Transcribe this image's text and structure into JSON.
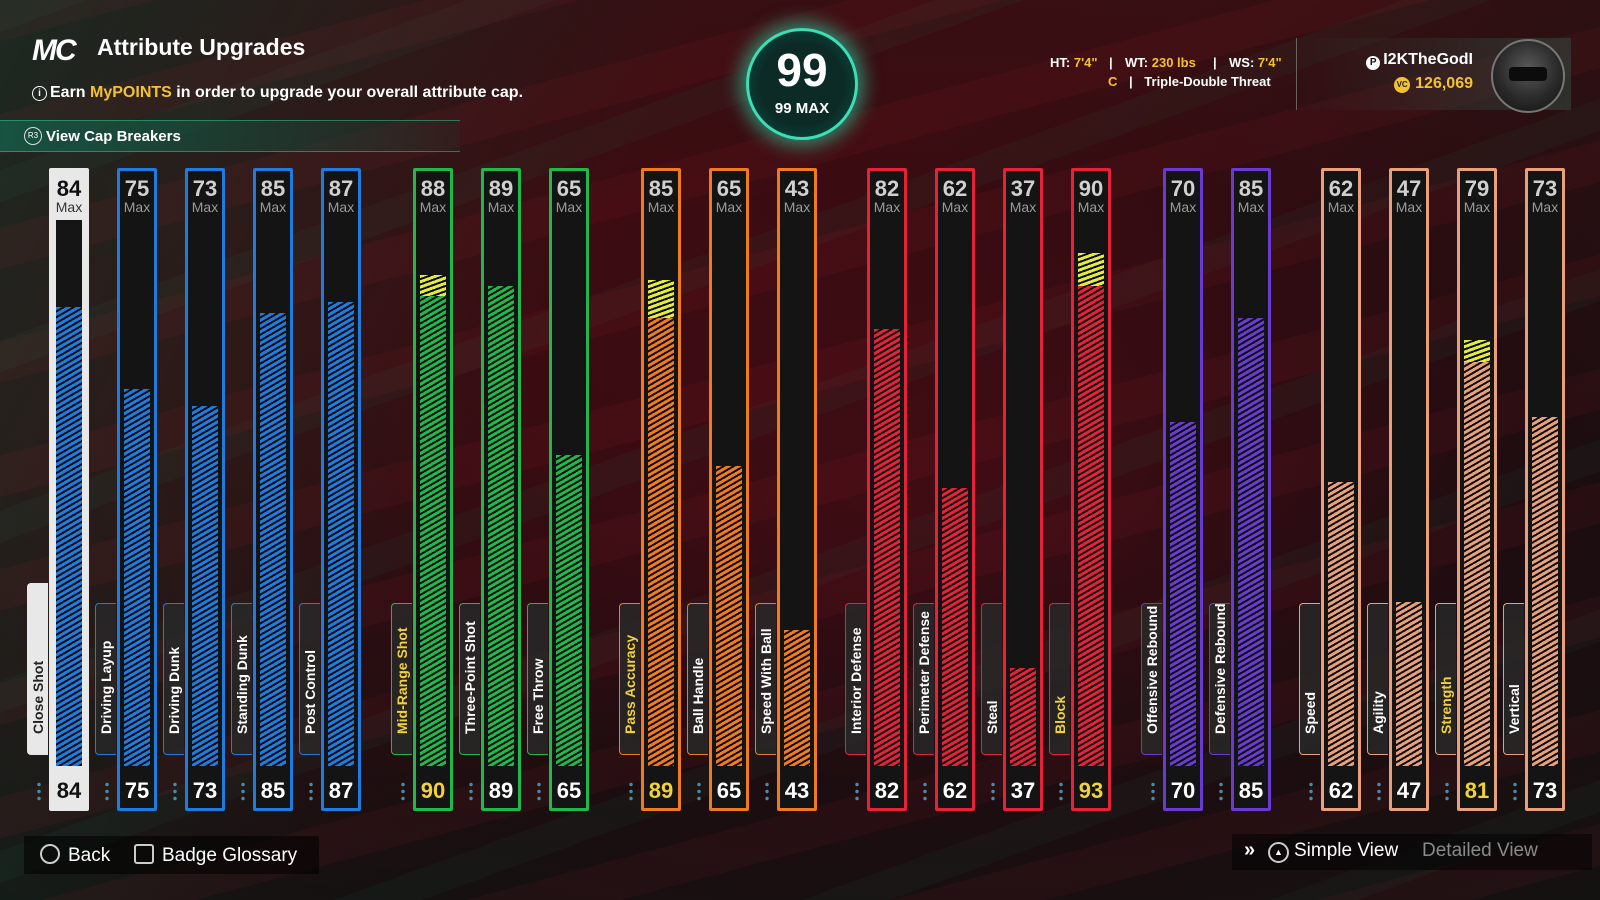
{
  "header": {
    "logo": "MC",
    "title": "Attribute Upgrades",
    "earn_prefix": "Earn",
    "earn_highlight": "MyPOINTS",
    "earn_suffix": "in order to upgrade your overall attribute cap.",
    "cap_button": "View Cap Breakers",
    "cap_button_icon": "R3"
  },
  "overall": {
    "value": "99",
    "max_label": "99 MAX"
  },
  "bio": {
    "ht_label": "HT:",
    "ht": "7'4\"",
    "wt_label": "WT:",
    "wt": "230 lbs",
    "ws_label": "WS:",
    "ws": "7'4\"",
    "position": "C",
    "archetype": "Triple-Double Threat"
  },
  "profile": {
    "username": "I2KTheGodI",
    "vc": "126,069",
    "vc_icon": "VC"
  },
  "max_label": "Max",
  "attributes": [
    {
      "name": "Close Shot",
      "max": "84",
      "current": "84",
      "fill": 0.84,
      "color": "#1e7be0",
      "selected": true
    },
    {
      "name": "Driving Layup",
      "max": "75",
      "current": "75",
      "fill": 0.69,
      "color": "#1e7be0"
    },
    {
      "name": "Driving Dunk",
      "max": "73",
      "current": "73",
      "fill": 0.66,
      "color": "#1e7be0"
    },
    {
      "name": "Standing Dunk",
      "max": "85",
      "current": "85",
      "fill": 0.83,
      "color": "#1e7be0"
    },
    {
      "name": "Post Control",
      "max": "87",
      "current": "87",
      "fill": 0.85,
      "color": "#1e7be0"
    },
    {
      "name": "Mid-Range Shot",
      "max": "88",
      "current": "90",
      "fill": 0.86,
      "boost": 0.04,
      "color": "#1fb84a",
      "highlight": true
    },
    {
      "name": "Three-Point Shot",
      "max": "89",
      "current": "89",
      "fill": 0.88,
      "color": "#1fb84a"
    },
    {
      "name": "Free Throw",
      "max": "65",
      "current": "65",
      "fill": 0.57,
      "color": "#1fb84a"
    },
    {
      "name": "Pass Accuracy",
      "max": "85",
      "current": "89",
      "fill": 0.82,
      "boost": 0.07,
      "color": "#f07a1e",
      "highlight": true
    },
    {
      "name": "Ball Handle",
      "max": "65",
      "current": "65",
      "fill": 0.55,
      "color": "#f07a1e"
    },
    {
      "name": "Speed With Ball",
      "max": "43",
      "current": "43",
      "fill": 0.25,
      "color": "#f07a1e"
    },
    {
      "name": "Interior Defense",
      "max": "82",
      "current": "82",
      "fill": 0.8,
      "color": "#e8213a"
    },
    {
      "name": "Perimeter Defense",
      "max": "62",
      "current": "62",
      "fill": 0.51,
      "color": "#e8213a"
    },
    {
      "name": "Steal",
      "max": "37",
      "current": "37",
      "fill": 0.18,
      "color": "#e8213a"
    },
    {
      "name": "Block",
      "max": "90",
      "current": "93",
      "fill": 0.88,
      "boost": 0.06,
      "color": "#e8213a",
      "highlight": true
    },
    {
      "name": "Offensive Rebound",
      "max": "70",
      "current": "70",
      "fill": 0.63,
      "color": "#6a3bd0"
    },
    {
      "name": "Defensive Rebound",
      "max": "85",
      "current": "85",
      "fill": 0.82,
      "color": "#6a3bd0"
    },
    {
      "name": "Speed",
      "max": "62",
      "current": "62",
      "fill": 0.52,
      "color": "#e8a07a"
    },
    {
      "name": "Agility",
      "max": "47",
      "current": "47",
      "fill": 0.3,
      "color": "#e8a07a"
    },
    {
      "name": "Strength",
      "max": "79",
      "current": "81",
      "fill": 0.74,
      "boost": 0.04,
      "color": "#e8a07a",
      "highlight": true
    },
    {
      "name": "Vertical",
      "max": "73",
      "current": "73",
      "fill": 0.64,
      "color": "#e8a07a"
    }
  ],
  "bottom": {
    "back": "Back",
    "glossary": "Badge Glossary",
    "simple_view": "Simple View",
    "detailed_view": "Detailed View"
  }
}
